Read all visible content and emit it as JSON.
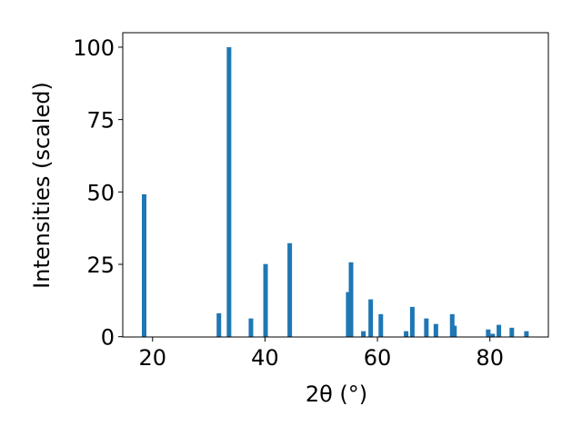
{
  "chart_data": {
    "type": "bar",
    "x": [
      18.5,
      31.8,
      33.6,
      37.5,
      40.1,
      44.4,
      54.8,
      55.3,
      57.5,
      58.8,
      60.6,
      65.1,
      66.2,
      68.7,
      70.4,
      73.3,
      73.7,
      79.7,
      80.5,
      81.6,
      83.9,
      86.5
    ],
    "values": [
      49.2,
      8.1,
      100,
      6.3,
      25.1,
      32.3,
      15.4,
      25.7,
      1.9,
      12.9,
      7.8,
      1.9,
      10.3,
      6.3,
      4.4,
      7.8,
      3.8,
      2.5,
      1.0,
      4.1,
      3.1,
      1.9
    ],
    "color": "#1f77b4",
    "xlabel": "2θ (°)",
    "ylabel": "Intensities (scaled)",
    "xlim": [
      14.7,
      90.4
    ],
    "xticks": [
      20,
      40,
      60,
      80
    ],
    "ylim": [
      -0.1,
      105
    ],
    "yticks": [
      0,
      25,
      50,
      75,
      100
    ],
    "grid": false
  }
}
